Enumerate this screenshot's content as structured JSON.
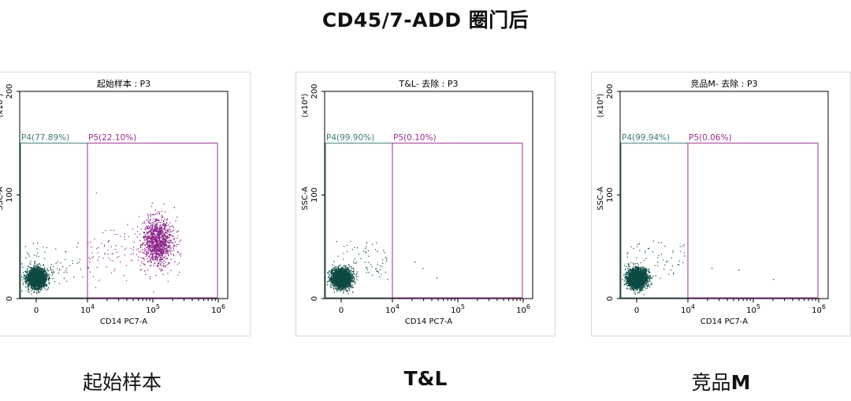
{
  "title": "CD45/7-ADD 圈门后",
  "chart_data": [
    {
      "type": "scatter",
      "title": "起始样本 : P3",
      "xlabel": "CD14 PC7-A",
      "ylabel": "SSC-A",
      "y_unit": "(x10⁴)",
      "x_ticks": [
        "0",
        "10",
        "10",
        "10"
      ],
      "x_tick_exponents": [
        "",
        "4",
        "5",
        "6"
      ],
      "y_ticks": [
        "0",
        "100",
        "200"
      ],
      "ylim": [
        0,
        200
      ],
      "gates": [
        {
          "name": "P4(77.89%)",
          "color": "#3d7d77"
        },
        {
          "name": "P5(22.10%)",
          "color": "#9a2c95"
        }
      ],
      "clusters": [
        {
          "name": "negative",
          "color": "#0d4a44",
          "x_center": 0,
          "y_center": 20,
          "count": 2400
        },
        {
          "name": "positive",
          "color": "#8a2088",
          "x_center": "10^5",
          "y_center": 55,
          "count": 1100
        }
      ]
    },
    {
      "type": "scatter",
      "title": "T&L- 去除 : P3",
      "xlabel": "CD14 PC7-A",
      "ylabel": "SSC-A",
      "y_unit": "(x10⁴)",
      "x_ticks": [
        "0",
        "10",
        "10",
        "10"
      ],
      "x_tick_exponents": [
        "",
        "4",
        "5",
        "6"
      ],
      "y_ticks": [
        "0",
        "100",
        "200"
      ],
      "ylim": [
        0,
        200
      ],
      "gates": [
        {
          "name": "P4(99.90%)",
          "color": "#3d7d77"
        },
        {
          "name": "P5(0.10%)",
          "color": "#9a2c95"
        }
      ],
      "clusters": [
        {
          "name": "negative",
          "color": "#0d4a44",
          "x_center": 0,
          "y_center": 20,
          "count": 2600
        }
      ]
    },
    {
      "type": "scatter",
      "title": "竞品M- 去除 : P3",
      "xlabel": "CD14 PC7-A",
      "ylabel": "SSC-A",
      "y_unit": "(x10⁴)",
      "x_ticks": [
        "0",
        "10",
        "10",
        "10"
      ],
      "x_tick_exponents": [
        "",
        "4",
        "5",
        "6"
      ],
      "y_ticks": [
        "0",
        "100",
        "200"
      ],
      "ylim": [
        0,
        200
      ],
      "gates": [
        {
          "name": "P4(99.94%)",
          "color": "#3d7d77"
        },
        {
          "name": "P5(0.06%)",
          "color": "#9a2c95"
        }
      ],
      "clusters": [
        {
          "name": "negative",
          "color": "#0d4a44",
          "x_center": 0,
          "y_center": 20,
          "count": 2600
        }
      ]
    }
  ],
  "captions": {
    "c1": "起始样本",
    "c2": "T&L",
    "c3_prefix": "竞品",
    "c3_bold": "M"
  }
}
